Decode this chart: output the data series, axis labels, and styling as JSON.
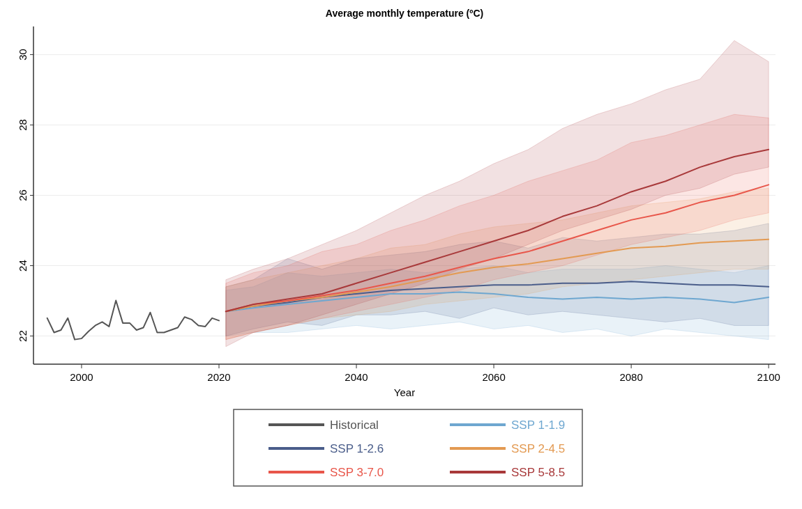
{
  "chart_data": {
    "type": "line",
    "title": "Average monthly temperature (ºC)",
    "xlabel": "Year",
    "xlim": [
      1993,
      2101
    ],
    "xticks": [
      2000,
      2020,
      2040,
      2060,
      2080,
      2100
    ],
    "ylim": [
      21.2,
      30.8
    ],
    "yticks": [
      22,
      24,
      26,
      28,
      30
    ],
    "grid": "y",
    "legend": "bottom",
    "line_style": "solid",
    "marker": "none",
    "series": [
      {
        "name": "Historical",
        "color": "#555555",
        "x": [
          1995,
          1996,
          1997,
          1998,
          1999,
          2000,
          2001,
          2002,
          2003,
          2004,
          2005,
          2006,
          2007,
          2008,
          2009,
          2010,
          2011,
          2012,
          2013,
          2014,
          2015,
          2016,
          2017,
          2018,
          2019,
          2020
        ],
        "values": [
          22.51,
          22.1,
          22.17,
          22.51,
          21.9,
          21.93,
          22.13,
          22.3,
          22.4,
          22.27,
          23.01,
          22.37,
          22.37,
          22.17,
          22.24,
          22.67,
          22.1,
          22.1,
          22.17,
          22.24,
          22.54,
          22.47,
          22.3,
          22.27,
          22.51,
          22.44
        ]
      },
      {
        "name": "SSP 1-1.9",
        "color": "#6ea7d0",
        "x": [
          2021,
          2025,
          2030,
          2035,
          2040,
          2045,
          2050,
          2055,
          2060,
          2065,
          2070,
          2075,
          2080,
          2085,
          2090,
          2095,
          2100
        ],
        "values": [
          22.7,
          22.8,
          22.9,
          23.0,
          23.1,
          23.2,
          23.2,
          23.25,
          23.2,
          23.1,
          23.05,
          23.1,
          23.05,
          23.1,
          23.05,
          22.95,
          23.1
        ],
        "lower": [
          22.0,
          22.1,
          22.1,
          22.2,
          22.3,
          22.2,
          22.3,
          22.4,
          22.2,
          22.3,
          22.1,
          22.2,
          22.0,
          22.2,
          22.1,
          22.0,
          21.9
        ],
        "upper": [
          23.3,
          23.4,
          23.8,
          23.7,
          23.8,
          23.9,
          23.8,
          23.9,
          24.0,
          23.8,
          23.9,
          23.9,
          23.9,
          24.0,
          23.9,
          23.8,
          24.0
        ]
      },
      {
        "name": "SSP 1-2.6",
        "color": "#4a5d8a",
        "x": [
          2021,
          2025,
          2030,
          2035,
          2040,
          2045,
          2050,
          2055,
          2060,
          2065,
          2070,
          2075,
          2080,
          2085,
          2090,
          2095,
          2100
        ],
        "values": [
          22.7,
          22.85,
          22.95,
          23.1,
          23.2,
          23.3,
          23.35,
          23.4,
          23.45,
          23.45,
          23.5,
          23.5,
          23.55,
          23.5,
          23.45,
          23.45,
          23.4
        ],
        "lower": [
          22.0,
          22.2,
          22.4,
          22.3,
          22.6,
          22.6,
          22.7,
          22.5,
          22.8,
          22.6,
          22.7,
          22.6,
          22.5,
          22.4,
          22.5,
          22.3,
          22.3
        ],
        "upper": [
          23.4,
          23.6,
          24.2,
          23.9,
          24.2,
          24.3,
          24.4,
          24.6,
          24.7,
          24.5,
          24.8,
          24.7,
          24.8,
          24.9,
          24.9,
          25.0,
          25.2
        ]
      },
      {
        "name": "SSP 2-4.5",
        "color": "#e39a52",
        "x": [
          2021,
          2025,
          2030,
          2035,
          2040,
          2045,
          2050,
          2055,
          2060,
          2065,
          2070,
          2075,
          2080,
          2085,
          2090,
          2095,
          2100
        ],
        "values": [
          22.7,
          22.85,
          23.0,
          23.1,
          23.25,
          23.4,
          23.6,
          23.8,
          23.95,
          24.05,
          24.2,
          24.35,
          24.5,
          24.55,
          24.65,
          24.7,
          24.75
        ],
        "lower": [
          21.9,
          22.1,
          22.3,
          22.5,
          22.6,
          22.7,
          22.9,
          23.0,
          23.1,
          23.2,
          23.4,
          23.5,
          23.6,
          23.7,
          23.8,
          23.9,
          23.9
        ],
        "upper": [
          23.4,
          23.6,
          23.8,
          24.0,
          24.2,
          24.5,
          24.6,
          24.9,
          25.1,
          25.2,
          25.3,
          25.5,
          25.7,
          25.8,
          25.9,
          26.1,
          26.2
        ]
      },
      {
        "name": "SSP 3-7.0",
        "color": "#e8564a",
        "x": [
          2021,
          2025,
          2030,
          2035,
          2040,
          2045,
          2050,
          2055,
          2060,
          2065,
          2070,
          2075,
          2080,
          2085,
          2090,
          2095,
          2100
        ],
        "values": [
          22.7,
          22.9,
          23.0,
          23.15,
          23.3,
          23.5,
          23.7,
          23.95,
          24.2,
          24.4,
          24.7,
          25.0,
          25.3,
          25.5,
          25.8,
          26.0,
          26.3
        ],
        "lower": [
          21.9,
          22.1,
          22.3,
          22.5,
          22.7,
          22.9,
          23.1,
          23.3,
          23.6,
          23.8,
          24.0,
          24.3,
          24.6,
          24.8,
          25.0,
          25.3,
          25.5
        ],
        "upper": [
          23.5,
          23.8,
          24.0,
          24.4,
          24.6,
          25.0,
          25.3,
          25.7,
          26.0,
          26.4,
          26.7,
          27.0,
          27.5,
          27.7,
          28.0,
          28.3,
          28.2
        ]
      },
      {
        "name": "SSP 5-8.5",
        "color": "#a8393a",
        "x": [
          2021,
          2025,
          2030,
          2035,
          2040,
          2045,
          2050,
          2055,
          2060,
          2065,
          2070,
          2075,
          2080,
          2085,
          2090,
          2095,
          2100
        ],
        "values": [
          22.7,
          22.9,
          23.05,
          23.2,
          23.5,
          23.8,
          24.1,
          24.4,
          24.7,
          25.0,
          25.4,
          25.7,
          26.1,
          26.4,
          26.8,
          27.1,
          27.3
        ],
        "lower": [
          21.7,
          22.1,
          22.3,
          22.6,
          22.9,
          23.2,
          23.5,
          23.9,
          24.2,
          24.6,
          25.0,
          25.3,
          25.6,
          26.0,
          26.2,
          26.6,
          26.8
        ],
        "upper": [
          23.6,
          23.9,
          24.2,
          24.6,
          25.0,
          25.5,
          26.0,
          26.4,
          26.9,
          27.3,
          27.9,
          28.3,
          28.6,
          29.0,
          29.3,
          30.4,
          29.8
        ]
      }
    ]
  }
}
